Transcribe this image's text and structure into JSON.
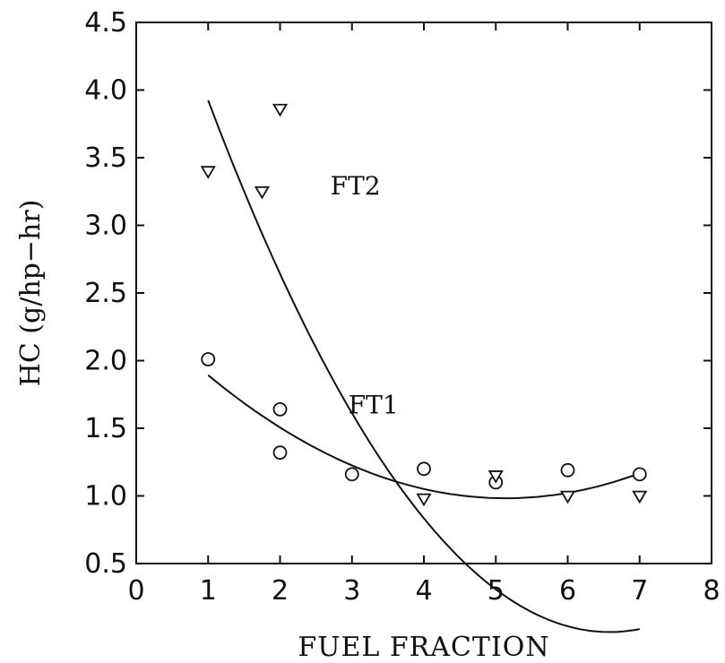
{
  "chart_data": {
    "type": "scatter",
    "title": "",
    "xlabel": "FUEL FRACTION",
    "ylabel": "HC (g/hp−hr)",
    "xlim": [
      0,
      8
    ],
    "ylim": [
      0.5,
      4.5
    ],
    "xticks": [
      0,
      1,
      2,
      3,
      4,
      5,
      6,
      7,
      8
    ],
    "yticks": [
      0.5,
      1.0,
      1.5,
      2.0,
      2.5,
      3.0,
      3.5,
      4.0,
      4.5
    ],
    "ytick_labels": [
      "0.5",
      "1.0",
      "1.5",
      "2.0",
      "2.5",
      "3.0",
      "3.5",
      "4.0",
      "4.5"
    ],
    "grid": false,
    "series": [
      {
        "name": "FT1",
        "marker": "circle",
        "points": [
          {
            "x": 1,
            "y": 2.01
          },
          {
            "x": 2,
            "y": 1.64
          },
          {
            "x": 2,
            "y": 1.32
          },
          {
            "x": 3,
            "y": 1.16
          },
          {
            "x": 4,
            "y": 1.2
          },
          {
            "x": 5,
            "y": 1.1
          },
          {
            "x": 6,
            "y": 1.19
          },
          {
            "x": 7,
            "y": 1.16
          }
        ],
        "fit_curve": {
          "x_range": [
            1,
            7
          ],
          "coefficients_quadratic": [
            2.3857,
            -0.5464,
            0.0532
          ]
        },
        "label_at": {
          "x": 2.95,
          "y": 1.61
        }
      },
      {
        "name": "FT2",
        "marker": "triangle-down",
        "points": [
          {
            "x": 1,
            "y": 3.4
          },
          {
            "x": 2,
            "y": 3.86
          },
          {
            "x": 1.75,
            "y": 3.25
          },
          {
            "x": 4,
            "y": 0.98
          },
          {
            "x": 5,
            "y": 1.15
          },
          {
            "x": 6,
            "y": 1.0
          },
          {
            "x": 7,
            "y": 1.0
          }
        ],
        "fit_curve": {
          "x_range": [
            1,
            7
          ],
          "coefficients_quadratic": [
            5.4586,
            -1.6609,
            0.1262
          ]
        },
        "label_at": {
          "x": 2.7,
          "y": 3.23
        }
      }
    ]
  }
}
